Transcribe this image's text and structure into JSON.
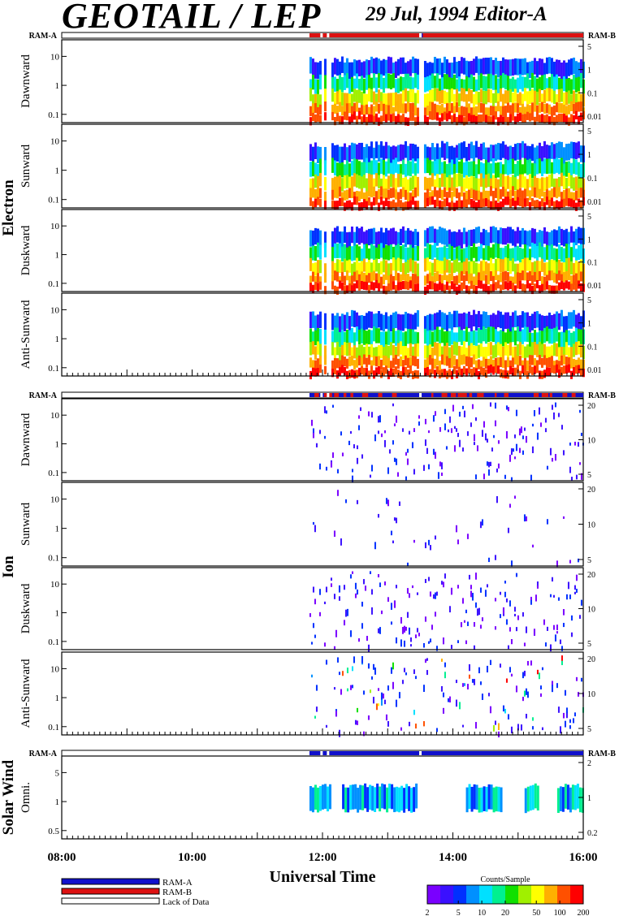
{
  "header": {
    "title": "GEOTAIL / LEP",
    "subtitle": "29 Jul, 1994   Editor-A"
  },
  "colors": {
    "ram_a": "#1010cc",
    "ram_b": "#dd1111",
    "palette": [
      "#7a00ff",
      "#3a10ff",
      "#0030ff",
      "#0090ff",
      "#00e0ff",
      "#00f090",
      "#10e000",
      "#a0f000",
      "#ffff00",
      "#ffb000",
      "#ff5000",
      "#ff0000"
    ]
  },
  "chart_data": {
    "type": "heatmap",
    "xlabel": "Universal Time",
    "x_range": [
      "08:00",
      "16:00"
    ],
    "x_ticks": [
      "08:00",
      "10:00",
      "12:00",
      "14:00",
      "16:00"
    ],
    "groups": [
      {
        "name": "Electron",
        "ram_left": "RAM-A",
        "ram_right": "RAM-B",
        "panels": [
          {
            "label": "Dawnward",
            "left_ticks": [
              "10",
              "1",
              "0.1"
            ],
            "right_ticks": [
              "5",
              "1",
              "0.1",
              "0.01"
            ]
          },
          {
            "label": "Sunward",
            "left_ticks": [
              "10",
              "1",
              "0.1"
            ],
            "right_ticks": [
              "5",
              "1",
              "0.1",
              "0.01"
            ]
          },
          {
            "label": "Duskward",
            "left_ticks": [
              "10",
              "1",
              "0.1"
            ],
            "right_ticks": [
              "5",
              "1",
              "0.1",
              "0.01"
            ]
          },
          {
            "label": "Anti-Sunward",
            "left_ticks": [
              "10",
              "1",
              "0.1"
            ],
            "right_ticks": [
              "5",
              "1",
              "0.1",
              "0.01"
            ]
          }
        ]
      },
      {
        "name": "Ion",
        "ram_left": "RAM-A",
        "ram_right": "RAM-B",
        "panels": [
          {
            "label": "Dawnward",
            "left_ticks": [
              "10",
              "1",
              "0.1"
            ],
            "right_ticks": [
              "20",
              "10",
              "5"
            ]
          },
          {
            "label": "Sunward",
            "left_ticks": [
              "10",
              "1",
              "0.1"
            ],
            "right_ticks": [
              "20",
              "10",
              "5"
            ]
          },
          {
            "label": "Duskward",
            "left_ticks": [
              "10",
              "1",
              "0.1"
            ],
            "right_ticks": [
              "20",
              "10",
              "5"
            ]
          },
          {
            "label": "Anti-Sunward",
            "left_ticks": [
              "10",
              "1",
              "0.1"
            ],
            "right_ticks": [
              "20",
              "10",
              "5"
            ]
          }
        ]
      },
      {
        "name": "Solar Wind",
        "ram_left": "RAM-A",
        "ram_right": "RAM-B",
        "panels": [
          {
            "label": "Omni.",
            "left_ticks": [
              "5",
              "1",
              "0.5"
            ],
            "right_ticks": [
              "2",
              "1",
              "0.2"
            ]
          }
        ]
      }
    ],
    "data_start": "11:48",
    "data_gaps": [
      "11:58",
      "12:04",
      "13:29"
    ],
    "colorbar": {
      "title": "Counts/Sample",
      "ticks": [
        "2",
        "5",
        "10",
        "20",
        "50",
        "100",
        "200"
      ],
      "scale": "log"
    },
    "legend": [
      {
        "label": "RAM-A",
        "color": "#1010cc"
      },
      {
        "label": "RAM-B",
        "color": "#dd1111"
      },
      {
        "label": "Lack of Data",
        "color": "#ffffff"
      }
    ]
  }
}
